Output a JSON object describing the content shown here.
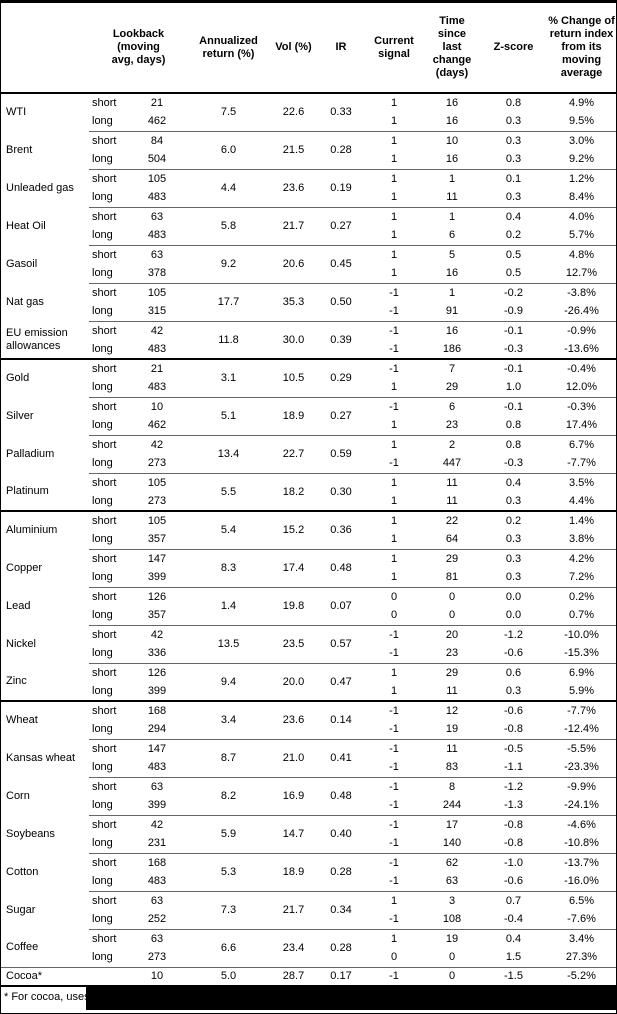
{
  "table": {
    "headers": {
      "commodity": "",
      "lookback": "Lookback\n(moving\navg, days)",
      "annualized": "Annualized\nreturn (%)",
      "vol": "Vol (%)",
      "ir": "IR",
      "signal": "Current\nsignal",
      "time": "Time since\nlast change\n(days)",
      "zscore": "Z-score",
      "pct": "% Change of\nreturn index\nfrom its\nmoving\naverage"
    },
    "groups": [
      {
        "name": "WTI",
        "annualized": "7.5",
        "vol": "22.6",
        "ir": "0.33",
        "rows": [
          {
            "horizon": "short",
            "lookback": "21",
            "signal": "1",
            "time": "16",
            "zscore": "0.8",
            "pct": "4.9%"
          },
          {
            "horizon": "long",
            "lookback": "462",
            "signal": "1",
            "time": "16",
            "zscore": "0.3",
            "pct": "9.5%"
          }
        ]
      },
      {
        "name": "Brent",
        "annualized": "6.0",
        "vol": "21.5",
        "ir": "0.28",
        "rows": [
          {
            "horizon": "short",
            "lookback": "84",
            "signal": "1",
            "time": "10",
            "zscore": "0.3",
            "pct": "3.0%"
          },
          {
            "horizon": "long",
            "lookback": "504",
            "signal": "1",
            "time": "16",
            "zscore": "0.3",
            "pct": "9.2%"
          }
        ]
      },
      {
        "name": "Unleaded gas",
        "annualized": "4.4",
        "vol": "23.6",
        "ir": "0.19",
        "rows": [
          {
            "horizon": "short",
            "lookback": "105",
            "signal": "1",
            "time": "1",
            "zscore": "0.1",
            "pct": "1.2%"
          },
          {
            "horizon": "long",
            "lookback": "483",
            "signal": "1",
            "time": "11",
            "zscore": "0.3",
            "pct": "8.4%"
          }
        ]
      },
      {
        "name": "Heat Oil",
        "annualized": "5.8",
        "vol": "21.7",
        "ir": "0.27",
        "rows": [
          {
            "horizon": "short",
            "lookback": "63",
            "signal": "1",
            "time": "1",
            "zscore": "0.4",
            "pct": "4.0%"
          },
          {
            "horizon": "long",
            "lookback": "483",
            "signal": "1",
            "time": "6",
            "zscore": "0.2",
            "pct": "5.7%"
          }
        ]
      },
      {
        "name": "Gasoil",
        "annualized": "9.2",
        "vol": "20.6",
        "ir": "0.45",
        "rows": [
          {
            "horizon": "short",
            "lookback": "63",
            "signal": "1",
            "time": "5",
            "zscore": "0.5",
            "pct": "4.8%"
          },
          {
            "horizon": "long",
            "lookback": "378",
            "signal": "1",
            "time": "16",
            "zscore": "0.5",
            "pct": "12.7%"
          }
        ]
      },
      {
        "name": "Nat gas",
        "annualized": "17.7",
        "vol": "35.3",
        "ir": "0.50",
        "rows": [
          {
            "horizon": "short",
            "lookback": "105",
            "signal": "-1",
            "time": "1",
            "zscore": "-0.2",
            "pct": "-3.8%"
          },
          {
            "horizon": "long",
            "lookback": "315",
            "signal": "-1",
            "time": "91",
            "zscore": "-0.9",
            "pct": "-26.4%"
          }
        ]
      },
      {
        "name": "EU emission allowances",
        "annualized": "11.8",
        "vol": "30.0",
        "ir": "0.39",
        "rows": [
          {
            "horizon": "short",
            "lookback": "42",
            "signal": "-1",
            "time": "16",
            "zscore": "-0.1",
            "pct": "-0.9%"
          },
          {
            "horizon": "long",
            "lookback": "483",
            "signal": "-1",
            "time": "186",
            "zscore": "-0.3",
            "pct": "-13.6%"
          }
        ]
      },
      {
        "name": "Gold",
        "section_break": true,
        "annualized": "3.1",
        "vol": "10.5",
        "ir": "0.29",
        "rows": [
          {
            "horizon": "short",
            "lookback": "21",
            "signal": "-1",
            "time": "7",
            "zscore": "-0.1",
            "pct": "-0.4%"
          },
          {
            "horizon": "long",
            "lookback": "483",
            "signal": "1",
            "time": "29",
            "zscore": "1.0",
            "pct": "12.0%"
          }
        ]
      },
      {
        "name": "Silver",
        "annualized": "5.1",
        "vol": "18.9",
        "ir": "0.27",
        "rows": [
          {
            "horizon": "short",
            "lookback": "10",
            "signal": "-1",
            "time": "6",
            "zscore": "-0.1",
            "pct": "-0.3%"
          },
          {
            "horizon": "long",
            "lookback": "462",
            "signal": "1",
            "time": "23",
            "zscore": "0.8",
            "pct": "17.4%"
          }
        ]
      },
      {
        "name": "Palladium",
        "annualized": "13.4",
        "vol": "22.7",
        "ir": "0.59",
        "rows": [
          {
            "horizon": "short",
            "lookback": "42",
            "signal": "1",
            "time": "2",
            "zscore": "0.8",
            "pct": "6.7%"
          },
          {
            "horizon": "long",
            "lookback": "273",
            "signal": "-1",
            "time": "447",
            "zscore": "-0.3",
            "pct": "-7.7%"
          }
        ]
      },
      {
        "name": "Platinum",
        "annualized": "5.5",
        "vol": "18.2",
        "ir": "0.30",
        "rows": [
          {
            "horizon": "short",
            "lookback": "105",
            "signal": "1",
            "time": "11",
            "zscore": "0.4",
            "pct": "3.5%"
          },
          {
            "horizon": "long",
            "lookback": "273",
            "signal": "1",
            "time": "11",
            "zscore": "0.3",
            "pct": "4.4%"
          }
        ]
      },
      {
        "name": "Aluminium",
        "section_break": true,
        "annualized": "5.4",
        "vol": "15.2",
        "ir": "0.36",
        "rows": [
          {
            "horizon": "short",
            "lookback": "105",
            "signal": "1",
            "time": "22",
            "zscore": "0.2",
            "pct": "1.4%"
          },
          {
            "horizon": "long",
            "lookback": "357",
            "signal": "1",
            "time": "64",
            "zscore": "0.3",
            "pct": "3.8%"
          }
        ]
      },
      {
        "name": "Copper",
        "annualized": "8.3",
        "vol": "17.4",
        "ir": "0.48",
        "rows": [
          {
            "horizon": "short",
            "lookback": "147",
            "signal": "1",
            "time": "29",
            "zscore": "0.3",
            "pct": "4.2%"
          },
          {
            "horizon": "long",
            "lookback": "399",
            "signal": "1",
            "time": "81",
            "zscore": "0.3",
            "pct": "7.2%"
          }
        ]
      },
      {
        "name": "Lead",
        "annualized": "1.4",
        "vol": "19.8",
        "ir": "0.07",
        "rows": [
          {
            "horizon": "short",
            "lookback": "126",
            "signal": "0",
            "time": "0",
            "zscore": "0.0",
            "pct": "0.2%"
          },
          {
            "horizon": "long",
            "lookback": "357",
            "signal": "0",
            "time": "0",
            "zscore": "0.0",
            "pct": "0.7%"
          }
        ]
      },
      {
        "name": "Nickel",
        "annualized": "13.5",
        "vol": "23.5",
        "ir": "0.57",
        "rows": [
          {
            "horizon": "short",
            "lookback": "42",
            "signal": "-1",
            "time": "20",
            "zscore": "-1.2",
            "pct": "-10.0%"
          },
          {
            "horizon": "long",
            "lookback": "336",
            "signal": "-1",
            "time": "23",
            "zscore": "-0.6",
            "pct": "-15.3%"
          }
        ]
      },
      {
        "name": "Zinc",
        "annualized": "9.4",
        "vol": "20.0",
        "ir": "0.47",
        "rows": [
          {
            "horizon": "short",
            "lookback": "126",
            "signal": "1",
            "time": "29",
            "zscore": "0.6",
            "pct": "6.9%"
          },
          {
            "horizon": "long",
            "lookback": "399",
            "signal": "1",
            "time": "11",
            "zscore": "0.3",
            "pct": "5.9%"
          }
        ]
      },
      {
        "name": "Wheat",
        "section_break": true,
        "annualized": "3.4",
        "vol": "23.6",
        "ir": "0.14",
        "rows": [
          {
            "horizon": "short",
            "lookback": "168",
            "signal": "-1",
            "time": "12",
            "zscore": "-0.6",
            "pct": "-7.7%"
          },
          {
            "horizon": "long",
            "lookback": "294",
            "signal": "-1",
            "time": "19",
            "zscore": "-0.8",
            "pct": "-12.4%"
          }
        ]
      },
      {
        "name": "Kansas wheat",
        "annualized": "8.7",
        "vol": "21.0",
        "ir": "0.41",
        "rows": [
          {
            "horizon": "short",
            "lookback": "147",
            "signal": "-1",
            "time": "11",
            "zscore": "-0.5",
            "pct": "-5.5%"
          },
          {
            "horizon": "long",
            "lookback": "483",
            "signal": "-1",
            "time": "83",
            "zscore": "-1.1",
            "pct": "-23.3%"
          }
        ]
      },
      {
        "name": "Corn",
        "annualized": "8.2",
        "vol": "16.9",
        "ir": "0.48",
        "rows": [
          {
            "horizon": "short",
            "lookback": "63",
            "signal": "-1",
            "time": "8",
            "zscore": "-1.2",
            "pct": "-9.9%"
          },
          {
            "horizon": "long",
            "lookback": "399",
            "signal": "-1",
            "time": "244",
            "zscore": "-1.3",
            "pct": "-24.1%"
          }
        ]
      },
      {
        "name": "Soybeans",
        "annualized": "5.9",
        "vol": "14.7",
        "ir": "0.40",
        "rows": [
          {
            "horizon": "short",
            "lookback": "42",
            "signal": "-1",
            "time": "17",
            "zscore": "-0.8",
            "pct": "-4.6%"
          },
          {
            "horizon": "long",
            "lookback": "231",
            "signal": "-1",
            "time": "140",
            "zscore": "-0.8",
            "pct": "-10.8%"
          }
        ]
      },
      {
        "name": "Cotton",
        "annualized": "5.3",
        "vol": "18.9",
        "ir": "0.28",
        "rows": [
          {
            "horizon": "short",
            "lookback": "168",
            "signal": "-1",
            "time": "62",
            "zscore": "-1.0",
            "pct": "-13.7%"
          },
          {
            "horizon": "long",
            "lookback": "483",
            "signal": "-1",
            "time": "63",
            "zscore": "-0.6",
            "pct": "-16.0%"
          }
        ]
      },
      {
        "name": "Sugar",
        "annualized": "7.3",
        "vol": "21.7",
        "ir": "0.34",
        "rows": [
          {
            "horizon": "short",
            "lookback": "63",
            "signal": "1",
            "time": "3",
            "zscore": "0.7",
            "pct": "6.5%"
          },
          {
            "horizon": "long",
            "lookback": "252",
            "signal": "-1",
            "time": "108",
            "zscore": "-0.4",
            "pct": "-7.6%"
          }
        ]
      },
      {
        "name": "Coffee",
        "annualized": "6.6",
        "vol": "23.4",
        "ir": "0.28",
        "rows": [
          {
            "horizon": "short",
            "lookback": "63",
            "signal": "1",
            "time": "19",
            "zscore": "0.4",
            "pct": "3.4%"
          },
          {
            "horizon": "long",
            "lookback": "273",
            "signal": "0",
            "time": "0",
            "zscore": "1.5",
            "pct": "27.3%"
          }
        ]
      },
      {
        "name": "Cocoa*",
        "full_line": true,
        "annualized": "5.0",
        "vol": "28.7",
        "ir": "0.17",
        "rows": [
          {
            "horizon": "",
            "lookback": "10",
            "signal": "-1",
            "time": "0",
            "zscore": "-1.5",
            "pct": "-5.2%"
          }
        ]
      }
    ],
    "footnote": "* For cocoa, uses c"
  }
}
